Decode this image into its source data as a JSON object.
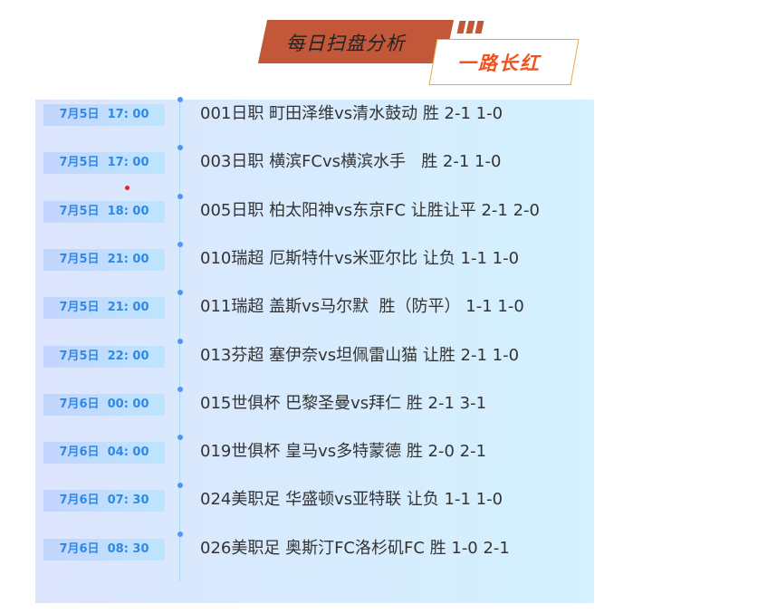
{
  "header": {
    "title": "每日扫盘分析",
    "subtitle": "一路长红"
  },
  "colors": {
    "title_bg": "#c2573a",
    "subtitle_text": "#f4511e",
    "time_text": "#2f88e6"
  },
  "matches": [
    {
      "time": "7月5日  17: 00",
      "text": "001日职 町田泽维vs清水鼓动 胜 2-1 1-0"
    },
    {
      "time": "7月5日  17: 00",
      "text": "003日职 横滨FCvs横滨水手   胜 2-1 1-0"
    },
    {
      "time": "7月5日  18: 00",
      "text": "005日职 柏太阳神vs东京FC 让胜让平 2-1 2-0"
    },
    {
      "time": "7月5日  21: 00",
      "text": "010瑞超 厄斯特什vs米亚尔比 让负 1-1 1-0"
    },
    {
      "time": "7月5日  21: 00",
      "text": "011瑞超 盖斯vs马尔默  胜（防平） 1-1 1-0"
    },
    {
      "time": "7月5日  22: 00",
      "text": "013芬超 塞伊奈vs坦佩雷山猫 让胜 2-1 1-0"
    },
    {
      "time": "7月6日  00: 00",
      "text": "015世俱杯 巴黎圣曼vs拜仁 胜 2-1 3-1"
    },
    {
      "time": "7月6日  04: 00",
      "text": "019世俱杯 皇马vs多特蒙德 胜 2-0 2-1"
    },
    {
      "time": "7月6日  07: 30",
      "text": "024美职足 华盛顿vs亚特联 让负 1-1 1-0"
    },
    {
      "time": "7月6日  08: 30",
      "text": "026美职足 奥斯汀FC洛杉矶FC 胜 1-0 2-1"
    }
  ]
}
